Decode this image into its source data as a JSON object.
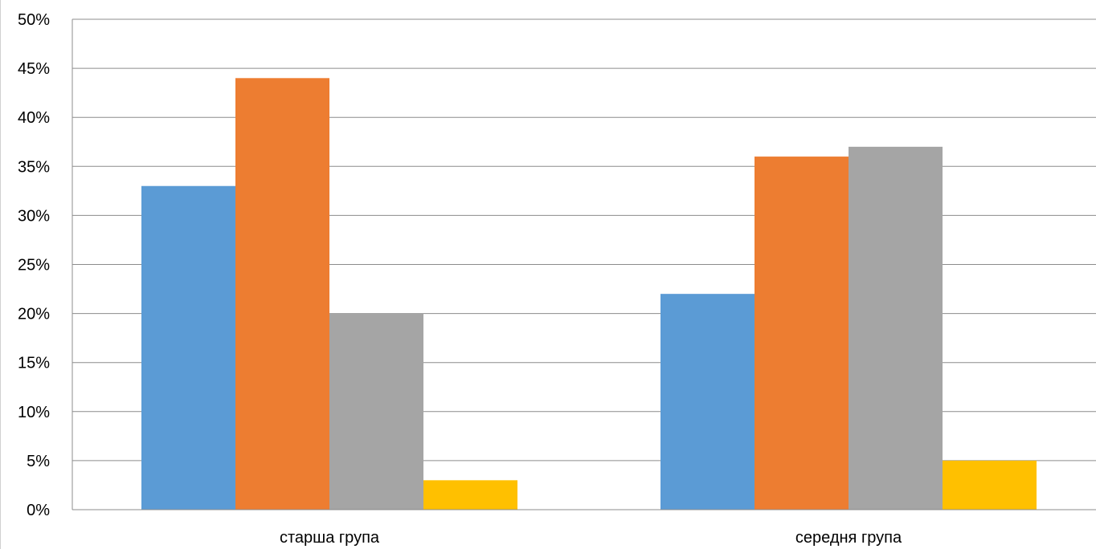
{
  "chart_data": {
    "type": "bar",
    "categories": [
      "старша група",
      "середня група"
    ],
    "series": [
      {
        "values": [
          33,
          22
        ],
        "color": "#5b9bd5"
      },
      {
        "values": [
          44,
          36
        ],
        "color": "#ed7d31"
      },
      {
        "values": [
          20,
          37
        ],
        "color": "#a5a5a5"
      },
      {
        "values": [
          3,
          5
        ],
        "color": "#ffc000"
      }
    ],
    "y_ticks": [
      "0%",
      "5%",
      "10%",
      "15%",
      "20%",
      "25%",
      "30%",
      "35%",
      "40%",
      "45%",
      "50%"
    ],
    "ylim": [
      0,
      50
    ],
    "y_unit": "%",
    "grid": true,
    "legend": "none",
    "title": "",
    "xlabel": "",
    "ylabel": ""
  }
}
